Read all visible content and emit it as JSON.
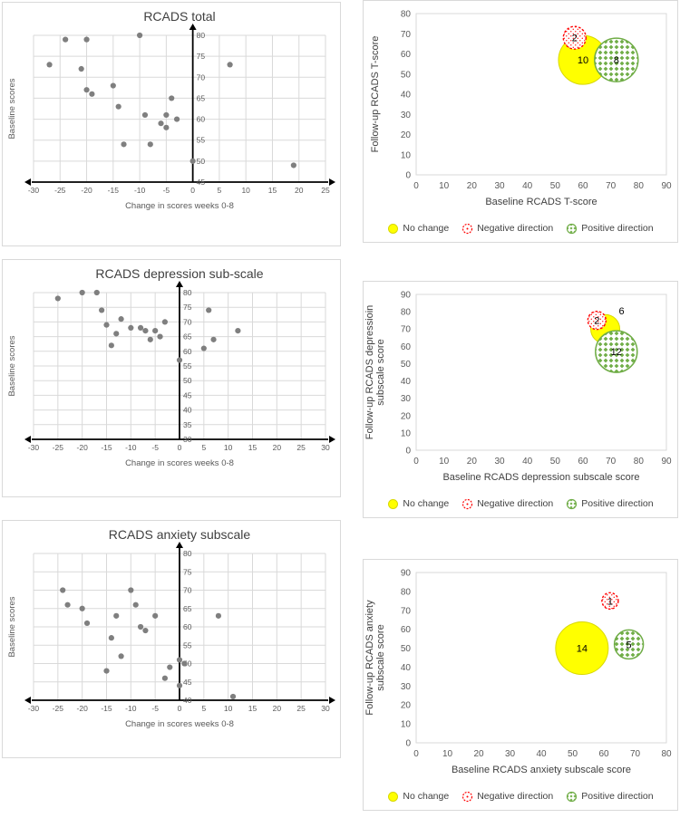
{
  "colors": {
    "no_change": "#ffff00",
    "no_change_stroke": "#d8d800",
    "negative": "#ff0000",
    "positive": "#70ad47",
    "point": "#7f7f7f",
    "grid": "#d9d9d9",
    "axis_text": "#595959",
    "title_text": "#404040",
    "axis_line": "#000000"
  },
  "chart_data": [
    {
      "id": "rcads-total-scatter",
      "type": "scatter",
      "title": "RCADS total",
      "xlabel": "Change in scores weeks 0-8",
      "ylabel": "Baseline scores",
      "xlim": [
        -30,
        25
      ],
      "xstep": 5,
      "ylim": [
        45,
        80
      ],
      "ystep": 5,
      "grid": true,
      "points": [
        [
          -27,
          73
        ],
        [
          -24,
          79
        ],
        [
          -21,
          72
        ],
        [
          -20,
          79
        ],
        [
          -20,
          67
        ],
        [
          -19,
          66
        ],
        [
          -15,
          68
        ],
        [
          -14,
          63
        ],
        [
          -13,
          54
        ],
        [
          -10,
          80
        ],
        [
          -9,
          61
        ],
        [
          -8,
          54
        ],
        [
          -6,
          59
        ],
        [
          -5,
          58
        ],
        [
          -5,
          61
        ],
        [
          -4,
          65
        ],
        [
          -3,
          60
        ],
        [
          0,
          50
        ],
        [
          7,
          73
        ],
        [
          19,
          49
        ]
      ]
    },
    {
      "id": "rcads-total-bubble",
      "type": "bubble",
      "xlabel": "Baseline RCADS T-score",
      "ylabel_lines": [
        "Follow-up RCADS T-score"
      ],
      "xlim": [
        0,
        90
      ],
      "xstep": 10,
      "ylim": [
        0,
        80
      ],
      "ystep": 10,
      "bubbles": [
        {
          "group": "No change",
          "count": 10,
          "x": 60,
          "y": 57,
          "r": 27,
          "style": "yellow"
        },
        {
          "group": "Positive direction",
          "count": 8,
          "x": 72,
          "y": 57,
          "r": 24,
          "style": "green"
        },
        {
          "group": "Negative direction",
          "count": 2,
          "x": 57,
          "y": 68,
          "r": 12.5,
          "style": "red"
        }
      ],
      "legend": [
        {
          "style": "yellow",
          "label": "No change"
        },
        {
          "style": "red",
          "label": "Negative direction"
        },
        {
          "style": "green",
          "label": "Positive direction"
        }
      ]
    },
    {
      "id": "rcads-depression-scatter",
      "type": "scatter",
      "title": "RCADS depression sub-scale",
      "xlabel": "Change in scores weeks 0-8",
      "ylabel": "Baseline scores",
      "xlim": [
        -30,
        30
      ],
      "xstep": 5,
      "ylim": [
        30,
        80
      ],
      "ystep": 5,
      "grid": true,
      "points": [
        [
          -25,
          78
        ],
        [
          -20,
          80
        ],
        [
          -17,
          80
        ],
        [
          -16,
          74
        ],
        [
          -15,
          69
        ],
        [
          -14,
          62
        ],
        [
          -13,
          66
        ],
        [
          -12,
          71
        ],
        [
          -10,
          68
        ],
        [
          -8,
          68
        ],
        [
          -7,
          67
        ],
        [
          -6,
          64
        ],
        [
          -5,
          67
        ],
        [
          -4,
          65
        ],
        [
          -3,
          70
        ],
        [
          0,
          57
        ],
        [
          5,
          61
        ],
        [
          6,
          74
        ],
        [
          7,
          64
        ],
        [
          12,
          67
        ]
      ]
    },
    {
      "id": "rcads-depression-bubble",
      "type": "bubble",
      "xlabel": "Baseline RCADS depression subscale score",
      "ylabel_lines": [
        "Follow-up RCADS depressioin",
        "subscale score"
      ],
      "xlim": [
        0,
        90
      ],
      "xstep": 10,
      "ylim": [
        0,
        90
      ],
      "ystep": 10,
      "bubbles": [
        {
          "group": "No change",
          "count": 6,
          "x": 68,
          "y": 70,
          "r": 16,
          "style": "yellow",
          "label_dx": 18,
          "label_dy": -20
        },
        {
          "group": "Positive direction",
          "count": 12,
          "x": 72,
          "y": 57,
          "r": 23,
          "style": "green"
        },
        {
          "group": "Negative direction",
          "count": 2,
          "x": 65,
          "y": 75,
          "r": 10,
          "style": "red"
        }
      ],
      "legend": [
        {
          "style": "yellow",
          "label": "No change"
        },
        {
          "style": "red",
          "label": "Negative direction"
        },
        {
          "style": "green",
          "label": "Positive direction"
        }
      ]
    },
    {
      "id": "rcads-anxiety-scatter",
      "type": "scatter",
      "title": "RCADS anxiety subscale",
      "xlabel": "Change in scores weeks 0-8",
      "ylabel": "Baseline scores",
      "xlim": [
        -30,
        30
      ],
      "xstep": 5,
      "ylim": [
        40,
        80
      ],
      "ystep": 5,
      "grid": true,
      "points": [
        [
          -24,
          70
        ],
        [
          -23,
          66
        ],
        [
          -20,
          65
        ],
        [
          -19,
          61
        ],
        [
          -15,
          48
        ],
        [
          -14,
          57
        ],
        [
          -13,
          63
        ],
        [
          -12,
          52
        ],
        [
          -10,
          70
        ],
        [
          -9,
          66
        ],
        [
          -8,
          60
        ],
        [
          -7,
          59
        ],
        [
          -5,
          63
        ],
        [
          -3,
          46
        ],
        [
          -2,
          49
        ],
        [
          0,
          51
        ],
        [
          0,
          44
        ],
        [
          1,
          50
        ],
        [
          8,
          63
        ],
        [
          11,
          41
        ]
      ]
    },
    {
      "id": "rcads-anxiety-bubble",
      "type": "bubble",
      "xlabel": "Baseline RCADS anxiety subscale score",
      "ylabel_lines": [
        "Follow-up RCADS anxiety",
        "subscale score"
      ],
      "xlim": [
        0,
        80
      ],
      "xstep": 10,
      "ylim": [
        0,
        90
      ],
      "ystep": 10,
      "bubbles": [
        {
          "group": "No change",
          "count": 14,
          "x": 53,
          "y": 50,
          "r": 29,
          "style": "yellow"
        },
        {
          "group": "Positive direction",
          "count": 5,
          "x": 68,
          "y": 52,
          "r": 16,
          "style": "green"
        },
        {
          "group": "Negative direction",
          "count": 1,
          "x": 62,
          "y": 75,
          "r": 9,
          "style": "red"
        }
      ],
      "legend": [
        {
          "style": "yellow",
          "label": "No change"
        },
        {
          "style": "red",
          "label": "Negative direction"
        },
        {
          "style": "green",
          "label": "Positive direction"
        }
      ]
    }
  ]
}
